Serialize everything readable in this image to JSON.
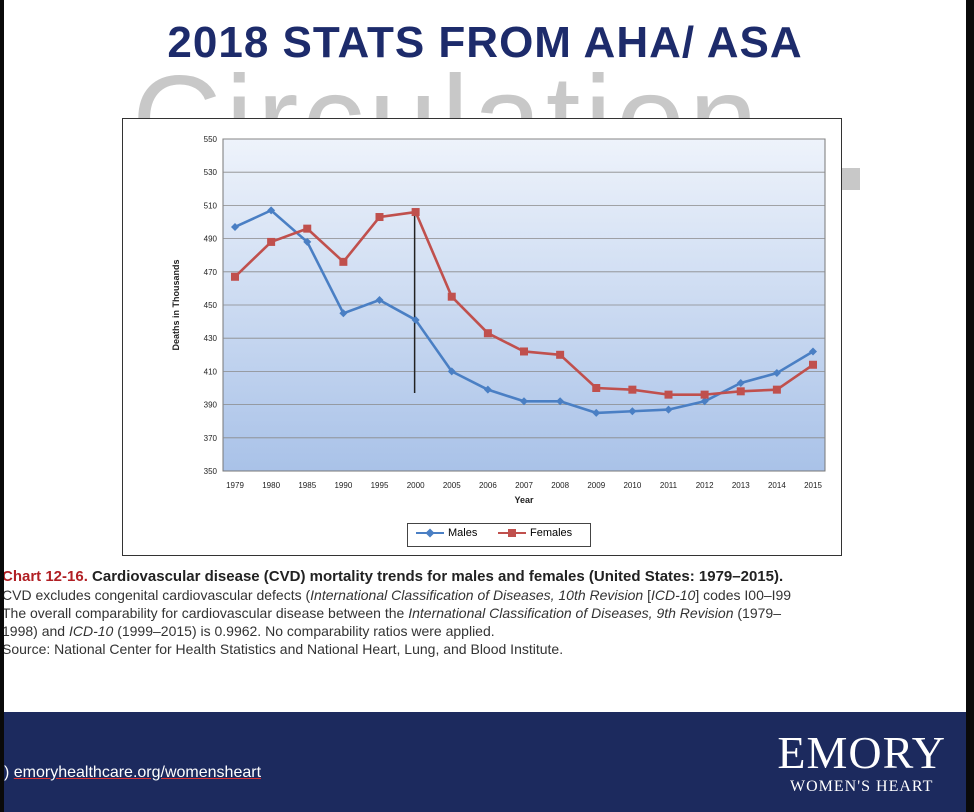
{
  "slide": {
    "title": "2018 STATS FROM AHA/ ASA",
    "watermark": "Circulation"
  },
  "chart_data": {
    "type": "line",
    "title": "",
    "xlabel": "Year",
    "ylabel": "Deaths in Thousands",
    "ylim": [
      350,
      550
    ],
    "yticks": [
      350,
      370,
      390,
      410,
      430,
      450,
      470,
      490,
      510,
      530,
      550
    ],
    "categories": [
      "1979",
      "1980",
      "1985",
      "1990",
      "1995",
      "2000",
      "2005",
      "2006",
      "2007",
      "2008",
      "2009",
      "2010",
      "2011",
      "2012",
      "2013",
      "2014",
      "2015"
    ],
    "series": [
      {
        "name": "Males",
        "color": "#4a7fc4",
        "marker": "diamond",
        "values": [
          497,
          507,
          488,
          445,
          453,
          441,
          410,
          399,
          392,
          392,
          385,
          386,
          387,
          392,
          403,
          409,
          422
        ]
      },
      {
        "name": "Females",
        "color": "#c0504d",
        "marker": "square",
        "values": [
          467,
          488,
          496,
          476,
          503,
          506,
          455,
          433,
          422,
          420,
          400,
          399,
          396,
          396,
          398,
          399,
          414
        ]
      }
    ],
    "annotation_line_at": "2000",
    "grid": true,
    "legend_position": "bottom-center",
    "plot_background": "gradient light-to-blue"
  },
  "caption": {
    "number": "Chart 12-16.",
    "title": "Cardiovascular disease (CVD) mortality trends for males and females (United States: 1979–2015).",
    "line2_a": "CVD excludes congenital cardiovascular defects (",
    "line2_b": "International Classification of Diseases, 10th Revision",
    "line2_c": " [",
    "line2_d": "ICD-10",
    "line2_e": "] codes I00–I99",
    "line3_a": "The overall comparability for cardiovascular disease between the ",
    "line3_b": "International Classification of Diseases, 9th Revision",
    "line3_c": " (1979–",
    "line4_a": "1998) and ",
    "line4_b": "ICD-10",
    "line4_c": " (1999–2015) is 0.9962. No comparability ratios were applied.",
    "line5": "Source: National Center for Health Statistics and National Heart, Lung, and Blood Institute."
  },
  "footer": {
    "url": "emoryhealthcare.org/womensheart",
    "url_prefix": ")",
    "brand_name": "EMORY",
    "brand_sub": "WOMEN'S HEART",
    "background": "#1c2a5e"
  }
}
